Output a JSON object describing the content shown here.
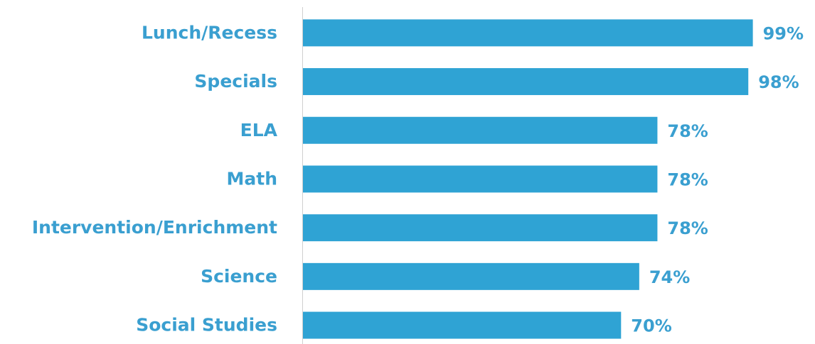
{
  "chart_data": {
    "type": "hbar",
    "categories": [
      "Lunch/Recess",
      "Specials",
      "ELA",
      "Math",
      "Intervention/Enrichment",
      "Science",
      "Social Studies"
    ],
    "values": [
      99,
      98,
      78,
      78,
      78,
      74,
      70
    ],
    "value_labels": [
      "99%",
      "98%",
      "78%",
      "78%",
      "78%",
      "74%",
      "70%"
    ],
    "color": "#2fa3d4",
    "xlim": [
      0,
      100
    ]
  }
}
